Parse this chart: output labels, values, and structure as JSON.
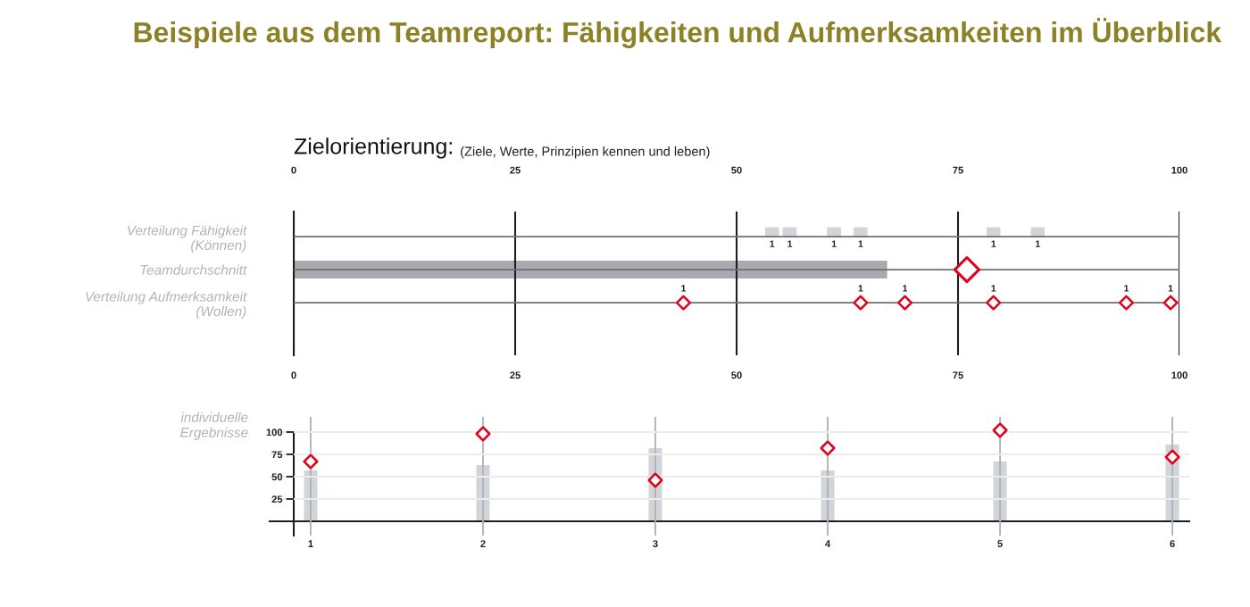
{
  "chart_data": [
    {
      "type": "bar",
      "orientation": "horizontal",
      "title": "Beispiele aus dem Teamreport: Fähigkeiten und Aufmerksamkeiten im Überblick",
      "subtitle": "Zielorientierung:",
      "categories": [
        "Verteilung Fähigkeit\n(Können)",
        "Teamdurchschnitt",
        "Verteilung Aufmerksamkeit\n(Wollen)"
      ],
      "series": [
        {
          "color": "#a9a9b1",
          "values": [
            null,
            67,
            null
          ]
        },
        {
          "type": "scatter",
          "marker": "diamond",
          "color": "#e2001a",
          "values": [
            null,
            76,
            null
          ]
        },
        {
          "type": "scatter",
          "marker": "square",
          "color": "#d1d4d8",
          "x": [
            "Verteilung Fähigkeit\n(Können)",
            "Verteilung Fähigkeit\n(Können)",
            "Verteilung Fähigkeit\n(Können)",
            "Verteilung Fähigkeit\n(Können)",
            "Verteilung Fähigkeit\n(Können)",
            "Verteilung Fähigkeit\n(Können)"
          ],
          "values": [
            54,
            56,
            61,
            64,
            79,
            84
          ]
        },
        {
          "type": "scatter",
          "marker": "diamond",
          "color": "#e2001a",
          "x": [
            "Verteilung Aufmerksamkeit\n(Wollen)",
            "Verteilung Aufmerksamkeit\n(Wollen)",
            "Verteilung Aufmerksamkeit\n(Wollen)",
            "Verteilung Aufmerksamkeit\n(Wollen)",
            "Verteilung Aufmerksamkeit\n(Wollen)",
            "Verteilung Aufmerksamkeit\n(Wollen)"
          ],
          "values": [
            44,
            64,
            69,
            79,
            94,
            99
          ]
        }
      ],
      "annotations": [
        "(Ziele, Werte, Prinzipien kennen und leben)",
        {
          "text": "1",
          "x": 54,
          "y": "Verteilung Fähigkeit\n(Können)"
        },
        {
          "text": "1",
          "x": 56,
          "y": "Verteilung Fähigkeit\n(Können)"
        },
        {
          "text": "1",
          "x": 61,
          "y": "Verteilung Fähigkeit\n(Können)"
        },
        {
          "text": "1",
          "x": 64,
          "y": "Verteilung Fähigkeit\n(Können)"
        },
        {
          "text": "1",
          "x": 79,
          "y": "Verteilung Fähigkeit\n(Können)"
        },
        {
          "text": "1",
          "x": 84,
          "y": "Verteilung Fähigkeit\n(Können)"
        },
        {
          "text": "1",
          "x": 44,
          "y": "Verteilung Aufmerksamkeit\n(Wollen)"
        },
        {
          "text": "1",
          "x": 64,
          "y": "Verteilung Aufmerksamkeit\n(Wollen)"
        },
        {
          "text": "1",
          "x": 69,
          "y": "Verteilung Aufmerksamkeit\n(Wollen)"
        },
        {
          "text": "1",
          "x": 79,
          "y": "Verteilung Aufmerksamkeit\n(Wollen)"
        },
        {
          "text": "1",
          "x": 94,
          "y": "Verteilung Aufmerksamkeit\n(Wollen)"
        },
        {
          "text": "1",
          "x": 99,
          "y": "Verteilung Aufmerksamkeit\n(Wollen)"
        }
      ],
      "xlim": [
        0,
        100
      ],
      "xticks": [
        0,
        25,
        50,
        75,
        100
      ],
      "x2lim": [
        0,
        100
      ],
      "x2ticks": [
        0,
        25,
        50,
        75,
        100
      ],
      "grid": true
    },
    {
      "type": "bar",
      "ylabel": "individuelle\nErgebnisse",
      "categories": [
        "1",
        "2",
        "3",
        "4",
        "5",
        "6"
      ],
      "series": [
        {
          "color": "#d1d4d8",
          "values": [
            57,
            63,
            82,
            57,
            67,
            86
          ]
        },
        {
          "type": "scatter",
          "marker": "diamond",
          "color": "#e2001a",
          "values": [
            67,
            98,
            46,
            82,
            102,
            72
          ]
        }
      ],
      "ylim": [
        -16,
        117
      ],
      "yticks": [
        25,
        50,
        75,
        100
      ],
      "grid": true
    }
  ]
}
